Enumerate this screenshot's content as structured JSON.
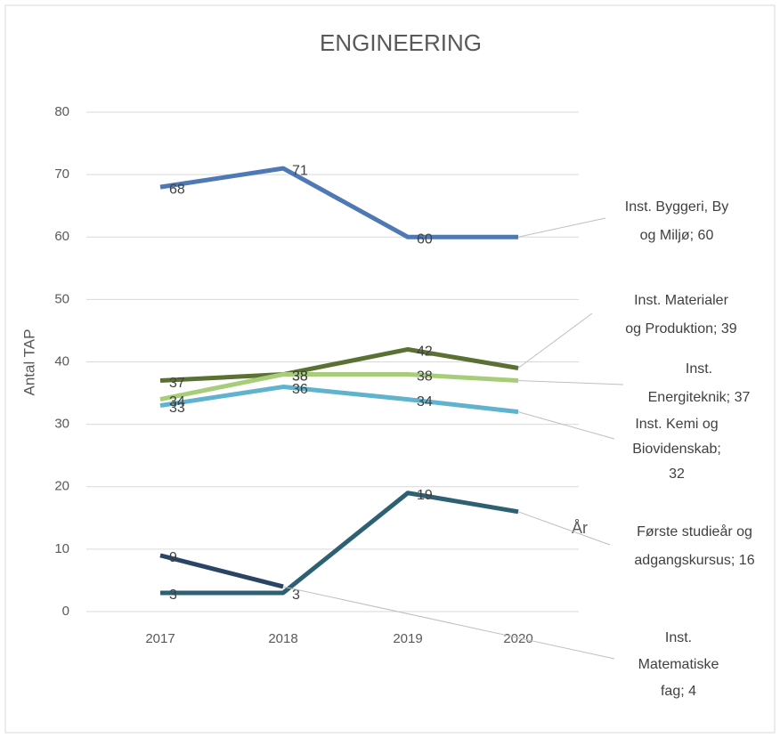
{
  "chart_data": {
    "type": "line",
    "title": "ENGINEERING",
    "ylabel": "Antal TAP",
    "xlabel": "År",
    "categories": [
      "2017",
      "2018",
      "2019",
      "2020"
    ],
    "ylim": [
      0,
      80
    ],
    "yticks": [
      0,
      10,
      20,
      30,
      40,
      50,
      60,
      70,
      80
    ],
    "grid": true,
    "series": [
      {
        "color": "#4f79b5",
        "values": [
          68,
          71,
          60,
          60
        ],
        "value_labels": [
          "68",
          "71",
          "60",
          "Inst. Byggeri, By\nog Miljø; 60"
        ]
      },
      {
        "color": "#5b7133",
        "values": [
          37,
          38,
          42,
          39
        ],
        "value_labels": [
          "37",
          "38",
          "42",
          "Inst. Materialer\nog Produktion; 39"
        ]
      },
      {
        "color": "#a7cc7a",
        "values": [
          34,
          38,
          38,
          37
        ],
        "value_labels": [
          "34",
          "38",
          "38",
          "Inst.\nEnergiteknik; 37"
        ]
      },
      {
        "color": "#5fb3cf",
        "values": [
          33,
          36,
          34,
          32
        ],
        "value_labels": [
          "33",
          "36",
          "34",
          "Inst. Kemi og\nBiovidenskab;\n32"
        ]
      },
      {
        "color": "#2e6073",
        "values": [
          3,
          3,
          19,
          16
        ],
        "value_labels": [
          "3",
          "3",
          "19",
          "Første studieår og\nadgangskursus; 16"
        ]
      },
      {
        "color": "#2a4466",
        "values": [
          9,
          4,
          null,
          null
        ],
        "value_labels": [
          "9",
          "Inst.\nMatematiske\nfag; 4",
          null,
          null
        ]
      }
    ]
  }
}
